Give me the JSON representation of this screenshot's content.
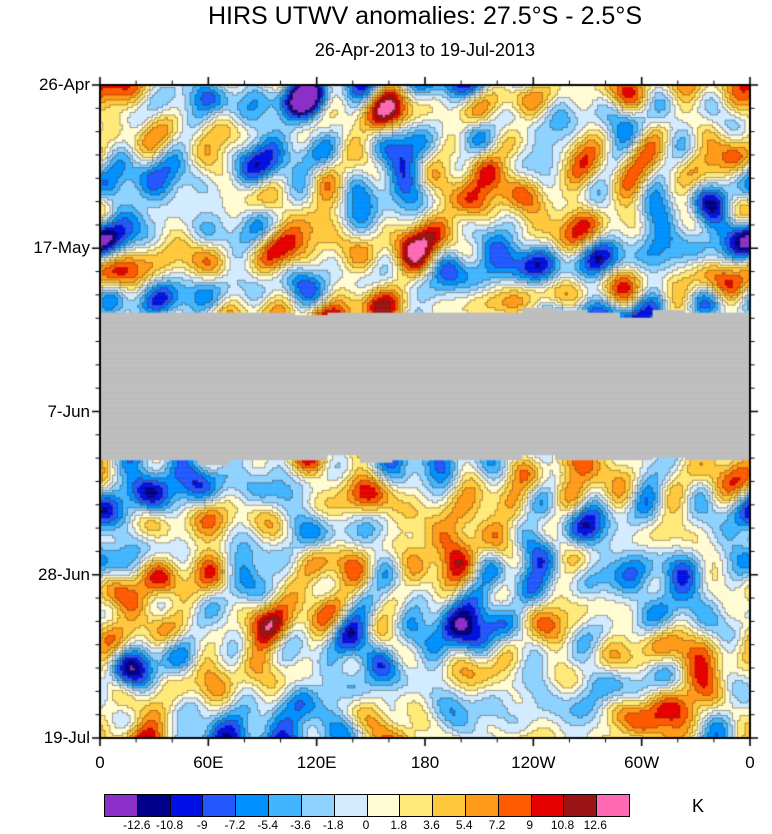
{
  "title": "HIRS UTWV anomalies: 27.5°S - 2.5°S",
  "subtitle": "26-Apr-2013 to 19-Jul-2013",
  "chart_data": {
    "type": "heatmap",
    "title": "HIRS UTWV anomalies: 27.5°S - 2.5°S",
    "subtitle": "26-Apr-2013 to 19-Jul-2013",
    "description": "Hovmoller diagram (time vs longitude) of filled-contour upper-tropospheric water vapor anomalies in K; a gray band of missing data covers early June",
    "x_axis": {
      "tick_labels": [
        "0",
        "60E",
        "120E",
        "180",
        "120W",
        "60W",
        "0"
      ],
      "range_deg": [
        0,
        360
      ],
      "minor_ticks_per_interval": 2
    },
    "y_axis": {
      "tick_labels": [
        "26-Apr",
        "17-May",
        "7-Jun",
        "28-Jun",
        "19-Jul"
      ],
      "direction": "time-increases-downward",
      "minor_ticks_per_interval": 6
    },
    "colorbar": {
      "units": "K",
      "levels": [
        -12.6,
        -10.8,
        -9,
        -7.2,
        -5.4,
        -3.6,
        -1.8,
        0,
        1.8,
        3.6,
        5.4,
        7.2,
        9,
        10.8,
        12.6
      ],
      "tick_labels": [
        "-12.6",
        "-10.8",
        "-9",
        "-7.2",
        "-5.4",
        "-3.6",
        "-1.8",
        "0",
        "1.8",
        "3.6",
        "5.4",
        "7.2",
        "9",
        "10.8",
        "12.6"
      ],
      "colors": [
        "#8B30C8",
        "#00008B",
        "#0010E6",
        "#2358FF",
        "#0090FF",
        "#41B5FF",
        "#8ED2FF",
        "#D2EBFF",
        "#FFFBD2",
        "#FFE978",
        "#FFC83C",
        "#FF9B19",
        "#FF5A00",
        "#E60000",
        "#9B1414",
        "#FF69B4"
      ]
    },
    "missing_data_band": {
      "color": "#BDBDBD",
      "time_fraction_start": 0.35,
      "time_fraction_end": 0.576
    },
    "anomaly_range_K": [
      -12.6,
      12.6
    ]
  }
}
